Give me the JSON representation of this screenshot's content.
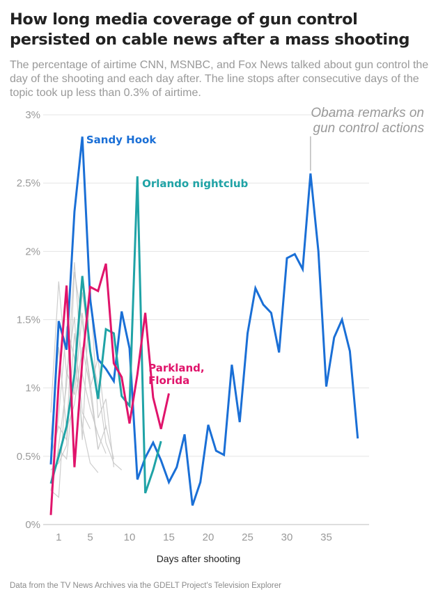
{
  "title": "How long media coverage of gun control persisted on cable news after a mass shooting",
  "subtitle": "The percentage of airtime CNN, MSNBC, and Fox News talked about gun control the day of the shooting and each day after. The line stops after consecutive days of the topic took up less than 0.3% of airtime.",
  "footer": "Data from the TV News Archives via the GDELT Project's Television Explorer",
  "chart_data": {
    "type": "line",
    "title": "",
    "xlabel": "Days after shooting",
    "ylabel": "",
    "xlim": [
      0,
      40
    ],
    "ylim": [
      0,
      3
    ],
    "x_ticks": [
      1,
      5,
      10,
      15,
      20,
      25,
      30,
      35
    ],
    "y_ticks": [
      0,
      0.5,
      1,
      1.5,
      2,
      2.5,
      3
    ],
    "y_tick_labels": [
      "0%",
      "0.5%",
      "1%",
      "1.5%",
      "2%",
      "2.5%",
      "3%"
    ],
    "grid": "horizontal",
    "legend": "direct labels",
    "colors": {
      "sandy_hook": "#1a6fd6",
      "orlando": "#1fa3a6",
      "parkland": "#e0146b",
      "other": "#c8c8c8"
    },
    "series": [
      {
        "name": "Sandy Hook",
        "color": "#1a6fd6",
        "highlight": true,
        "x": [
          0,
          1,
          2,
          3,
          4,
          5,
          6,
          7,
          8,
          9,
          10,
          11,
          12,
          13,
          14,
          15,
          16,
          17,
          18,
          19,
          20,
          21,
          22,
          23,
          24,
          25,
          26,
          27,
          28,
          29,
          30,
          31,
          32,
          33,
          34,
          35,
          36,
          37,
          38,
          39
        ],
        "y": [
          0.44,
          1.49,
          1.28,
          2.29,
          2.84,
          1.65,
          1.21,
          1.14,
          1.05,
          1.56,
          1.29,
          0.33,
          0.49,
          0.6,
          0.47,
          0.31,
          0.42,
          0.66,
          0.14,
          0.31,
          0.73,
          0.54,
          0.51,
          1.17,
          0.75,
          1.4,
          1.73,
          1.61,
          1.55,
          1.26,
          1.95,
          1.98,
          1.87,
          2.57,
          2.0,
          1.01,
          1.37,
          1.5,
          1.27,
          0.63
        ]
      },
      {
        "name": "Orlando nightclub",
        "color": "#1fa3a6",
        "highlight": true,
        "x": [
          0,
          1,
          2,
          3,
          4,
          5,
          6,
          7,
          8,
          9,
          10,
          11,
          12,
          13,
          14
        ],
        "y": [
          0.3,
          0.5,
          0.72,
          1.1,
          1.82,
          1.27,
          0.92,
          1.43,
          1.4,
          0.94,
          0.87,
          2.55,
          0.23,
          0.4,
          0.61
        ]
      },
      {
        "name": "Parkland, Florida",
        "color": "#e0146b",
        "highlight": true,
        "x": [
          0,
          1,
          2,
          3,
          4,
          5,
          6,
          7,
          8,
          9,
          10,
          11,
          12,
          13,
          14,
          15
        ],
        "y": [
          0.07,
          1.04,
          1.75,
          0.42,
          1.2,
          1.74,
          1.71,
          1.91,
          1.18,
          1.08,
          0.74,
          1.1,
          1.55,
          0.93,
          0.7,
          0.96
        ]
      },
      {
        "name": "",
        "color": "#c8c8c8",
        "highlight": false,
        "x": [
          0,
          1,
          2,
          3,
          4,
          5,
          6,
          7,
          8
        ],
        "y": [
          0.82,
          1.78,
          1.1,
          1.52,
          0.62,
          1.75,
          0.78,
          0.92,
          0.42
        ]
      },
      {
        "name": "",
        "color": "#c8c8c8",
        "highlight": false,
        "x": [
          0,
          1,
          2,
          3,
          4,
          5,
          6,
          7
        ],
        "y": [
          0.18,
          0.58,
          1.02,
          1.92,
          1.1,
          0.85,
          0.66,
          0.52
        ]
      },
      {
        "name": "",
        "color": "#c8c8c8",
        "highlight": false,
        "x": [
          0,
          1,
          2,
          3,
          4,
          5,
          6
        ],
        "y": [
          0.3,
          0.8,
          1.45,
          1.22,
          0.72,
          0.45,
          0.38
        ]
      },
      {
        "name": "",
        "color": "#c8c8c8",
        "highlight": false,
        "x": [
          0,
          1,
          2,
          3,
          4,
          5,
          6,
          7,
          8
        ],
        "y": [
          0.5,
          0.72,
          0.62,
          1.85,
          1.48,
          1.05,
          0.55,
          0.72,
          0.48
        ]
      },
      {
        "name": "",
        "color": "#c8c8c8",
        "highlight": false,
        "x": [
          0,
          1,
          2,
          3,
          4,
          5,
          6
        ],
        "y": [
          0.25,
          0.2,
          1.12,
          0.95,
          1.55,
          0.98,
          0.55
        ]
      },
      {
        "name": "",
        "color": "#c8c8c8",
        "highlight": false,
        "x": [
          0,
          1,
          2,
          3,
          4,
          5,
          6,
          7
        ],
        "y": [
          0.62,
          1.3,
          0.7,
          0.88,
          1.3,
          1.0,
          1.22,
          0.7
        ]
      },
      {
        "name": "",
        "color": "#c8c8c8",
        "highlight": false,
        "x": [
          0,
          1,
          2,
          3,
          4,
          5
        ],
        "y": [
          0.4,
          0.45,
          0.58,
          1.4,
          0.82,
          0.7
        ]
      },
      {
        "name": "",
        "color": "#c8c8c8",
        "highlight": false,
        "x": [
          0,
          1,
          2,
          3,
          4,
          5,
          6,
          7,
          8,
          9
        ],
        "y": [
          0.25,
          0.55,
          0.48,
          1.05,
          1.7,
          1.28,
          1.02,
          0.6,
          0.45,
          0.4
        ]
      }
    ],
    "annotations": [
      {
        "text": "Sandy Hook",
        "series": "Sandy Hook",
        "x": 4.5,
        "y": 2.79,
        "color": "#1a6fd6"
      },
      {
        "text": "Orlando nightclub",
        "series": "Orlando nightclub",
        "x": 11.6,
        "y": 2.47,
        "color": "#1fa3a6"
      },
      {
        "text_lines": [
          "Parkland,",
          "Florida"
        ],
        "series": "Parkland, Florida",
        "x": 12.4,
        "y": 1.12,
        "color": "#e0146b"
      },
      {
        "text_lines": [
          "Obama remarks on",
          "gun control actions"
        ],
        "x": 33,
        "y": 2.57,
        "pointer": true,
        "color": "#999999"
      }
    ]
  }
}
